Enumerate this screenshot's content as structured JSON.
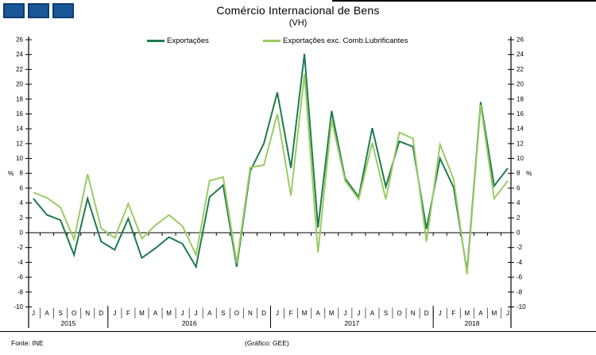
{
  "logo": {
    "square_fill": "#1a5796",
    "square_border": "#0d3c6e"
  },
  "header": {
    "title": "Comércio Internacional de Bens",
    "subtitle": "(VH)"
  },
  "footer": {
    "source": "Fonte: INE",
    "credit": "(Gráfico:  GEE)"
  },
  "chart_data": {
    "type": "line",
    "title": "Comércio Internacional de Bens",
    "subtitle": "(VH)",
    "ylabel": "%",
    "ylim": [
      -10,
      26
    ],
    "ytick_step": 2,
    "grid": false,
    "legend_position": "top",
    "axis_color": "#000000",
    "divider_color": "#404040",
    "x_months": [
      "J",
      "A",
      "S",
      "O",
      "N",
      "D",
      "J",
      "F",
      "M",
      "A",
      "M",
      "J",
      "J",
      "A",
      "S",
      "O",
      "N",
      "D",
      "J",
      "F",
      "M",
      "A",
      "M",
      "J",
      "J",
      "A",
      "S",
      "O",
      "N",
      "D",
      "J",
      "F",
      "M",
      "A",
      "M",
      "J"
    ],
    "x_years": [
      {
        "label": "2015",
        "months": 6
      },
      {
        "label": "2016",
        "months": 12
      },
      {
        "label": "2017",
        "months": 12
      },
      {
        "label": "2018",
        "months": 6
      }
    ],
    "series": [
      {
        "name": "Exportações",
        "color": "#1f7a4e",
        "values": [
          4.6,
          2.4,
          1.7,
          -3.0,
          4.6,
          -1.2,
          -2.3,
          1.9,
          -3.4,
          -2.1,
          -0.6,
          -1.5,
          -4.6,
          4.8,
          6.4,
          -4.6,
          8.3,
          12.0,
          18.9,
          8.7,
          24.1,
          0.7,
          16.4,
          7.3,
          4.8,
          14.1,
          6.2,
          12.3,
          11.6,
          0.5,
          10.0,
          6.1,
          -5.2,
          17.6,
          6.3,
          8.7
        ]
      },
      {
        "name": "Exportações exc. Comb.Lubrificantes",
        "color": "#9bcb64",
        "values": [
          5.4,
          4.7,
          3.4,
          -0.9,
          7.9,
          0.6,
          -0.7,
          3.9,
          -0.8,
          1.0,
          2.4,
          0.9,
          -3.0,
          7.0,
          7.5,
          -4.1,
          8.8,
          9.1,
          16.0,
          5.0,
          21.4,
          -2.7,
          15.2,
          7.0,
          4.5,
          12.1,
          4.5,
          13.5,
          12.7,
          -1.2,
          11.9,
          7.2,
          -5.6,
          17.2,
          4.6,
          7.0
        ]
      }
    ]
  }
}
